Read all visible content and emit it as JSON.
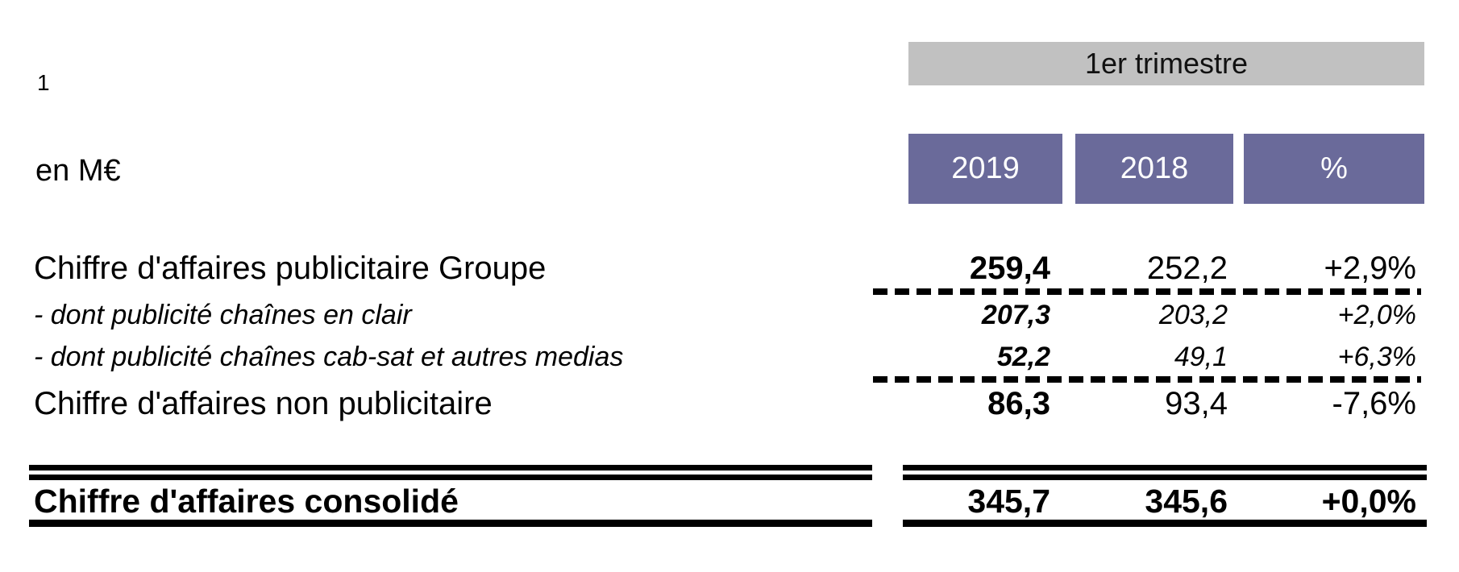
{
  "footnote": "1",
  "unit_label": "en M€",
  "period_header": "1er trimestre",
  "columns": [
    "2019",
    "2018",
    "%"
  ],
  "rows": [
    {
      "label": "Chiffre d'affaires publicitaire Groupe",
      "y2019": "259,4",
      "y2018": "252,2",
      "pct": "+2,9%"
    },
    {
      "label": "- dont publicité chaînes en clair",
      "y2019": "207,3",
      "y2018": "203,2",
      "pct": "+2,0%"
    },
    {
      "label": "- dont publicité chaînes cab-sat et autres medias",
      "y2019": "52,2",
      "y2018": "49,1",
      "pct": "+6,3%"
    },
    {
      "label": "Chiffre d'affaires non publicitaire",
      "y2019": "86,3",
      "y2018": "93,4",
      "pct": "-7,6%"
    }
  ],
  "total_row": {
    "label": "Chiffre d'affaires consolidé",
    "y2019": "345,7",
    "y2018": "345,6",
    "pct": "+0,0%"
  },
  "colors": {
    "header_fill": "#6a6a9a",
    "header_text": "#ffffff",
    "period_fill": "#c1c1c1",
    "text": "#000000"
  }
}
